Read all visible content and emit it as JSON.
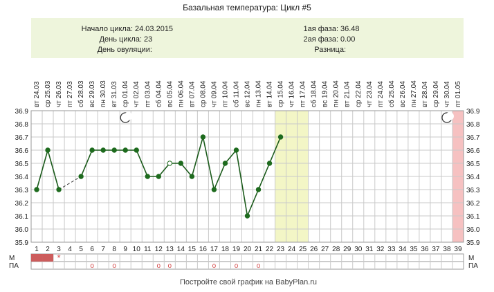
{
  "title": "Базальная температура: Цикл #5",
  "info": {
    "start_label": "Начало цикла:",
    "start_value": "24.03.2015",
    "day_label": "День цикла:",
    "day_value": "23",
    "ovulation_label": "День овуляции:",
    "ovulation_value": "",
    "phase1_label": "1ая фаза:",
    "phase1_value": "36.48",
    "phase2_label": "2ая фаза:",
    "phase2_value": "0.00",
    "diff_label": "Разница:",
    "diff_value": ""
  },
  "footer": "Постройте свой график на BabyPlan.ru",
  "row_labels": {
    "m": "М",
    "pa": "ПА"
  },
  "colors": {
    "info_bg": "#eef5dc",
    "line": "#1a5a1a",
    "marker": "#1e6b1e",
    "highlight": "#f3f6c6",
    "pink": "#f6c1c1",
    "menses": "#cc5c5c",
    "pa_marker": "#d44a4a"
  },
  "chart_data": {
    "type": "line",
    "ylim": [
      35.9,
      36.9
    ],
    "yticks": [
      "35.9",
      "36.0",
      "36.1",
      "36.2",
      "36.3",
      "36.4",
      "36.5",
      "36.6",
      "36.7",
      "36.8",
      "36.9"
    ],
    "days": [
      1,
      2,
      3,
      4,
      5,
      6,
      7,
      8,
      9,
      10,
      11,
      12,
      13,
      14,
      15,
      16,
      17,
      18,
      19,
      20,
      21,
      22,
      23,
      24,
      25,
      26,
      27,
      28,
      29,
      30,
      31,
      32,
      33,
      34,
      35,
      36,
      37,
      38,
      39
    ],
    "weekdays": [
      "вт",
      "ср",
      "чт",
      "пт",
      "сб",
      "вс",
      "пн",
      "вт",
      "ср",
      "чт",
      "пт",
      "сб",
      "вс",
      "пн",
      "вт",
      "ср",
      "чт",
      "пт",
      "сб",
      "вс",
      "пн",
      "вт",
      "ср",
      "чт",
      "пт",
      "сб",
      "вс",
      "пн",
      "вт",
      "ср",
      "чт",
      "пт",
      "сб",
      "вс",
      "пн",
      "вт",
      "ср",
      "чт",
      "пт"
    ],
    "dates": [
      "24.03",
      "25.03",
      "26.03",
      "27.03",
      "28.03",
      "29.03",
      "30.03",
      "31.03",
      "01.04",
      "02.04",
      "03.04",
      "04.04",
      "05.04",
      "06.04",
      "07.04",
      "08.04",
      "09.04",
      "10.04",
      "11.04",
      "12.04",
      "13.04",
      "14.04",
      "15.04",
      "16.04",
      "17.04",
      "18.04",
      "19.04",
      "20.04",
      "21.04",
      "22.04",
      "23.04",
      "24.04",
      "25.04",
      "26.04",
      "27.04",
      "28.04",
      "29.04",
      "30.04",
      "01.05"
    ],
    "temperatures": [
      36.3,
      36.6,
      36.3,
      null,
      36.4,
      36.6,
      36.6,
      36.6,
      36.6,
      36.6,
      36.4,
      36.4,
      36.5,
      36.5,
      36.4,
      36.7,
      36.3,
      36.5,
      36.6,
      36.1,
      36.3,
      36.5,
      36.7,
      null,
      null,
      null,
      null,
      null,
      null,
      null,
      null,
      null,
      null,
      null,
      null,
      null,
      null,
      null,
      null
    ],
    "open_marker_days": [
      13
    ],
    "dashed_segments": [
      [
        3,
        5
      ]
    ],
    "highlight_days": [
      23,
      24,
      25
    ],
    "pink_day": 39,
    "moon_days": [
      9,
      38
    ],
    "menses_days": [
      1,
      2
    ],
    "star_day": 3,
    "star_symbol": "*",
    "pa_days": [
      6,
      8,
      12,
      13,
      17,
      19,
      21
    ],
    "pa_symbol": "о"
  }
}
